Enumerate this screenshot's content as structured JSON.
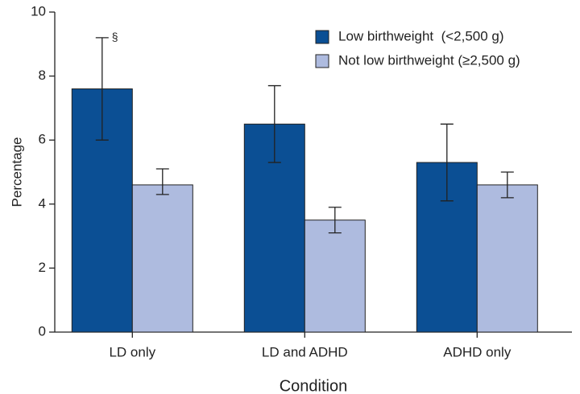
{
  "chart_data": {
    "type": "bar",
    "xlabel": "Condition",
    "ylabel": "Percentage",
    "categories": [
      "LD only",
      "LD and ADHD",
      "ADHD only"
    ],
    "series": [
      {
        "name": "Low birthweight  (<2,500 g)",
        "color": "#0b4f94",
        "values": [
          7.6,
          6.5,
          5.3
        ],
        "ci_low": [
          6.0,
          5.3,
          4.1
        ],
        "ci_high": [
          9.2,
          7.7,
          6.5
        ]
      },
      {
        "name": "Not low birthweight (≥2,500 g)",
        "color": "#aebbdf",
        "values": [
          4.6,
          3.5,
          4.6
        ],
        "ci_low": [
          4.3,
          3.1,
          4.2
        ],
        "ci_high": [
          5.1,
          3.9,
          5.0
        ]
      }
    ],
    "annotations": [
      {
        "text": "§",
        "series": 0,
        "category": 0
      }
    ],
    "ylim": [
      0,
      10
    ],
    "yticks": [
      0,
      2,
      4,
      6,
      8,
      10
    ],
    "grid": false,
    "legend": "upper right"
  }
}
